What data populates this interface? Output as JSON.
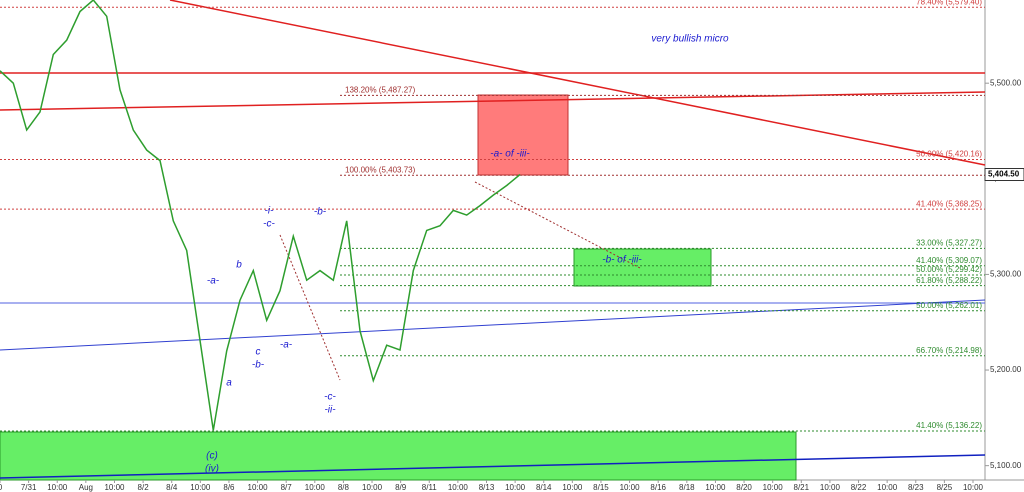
{
  "chart_data": {
    "type": "line",
    "title": "very bullish micro",
    "price": {
      "color": "#2e9e2e",
      "values": [
        5513,
        5500,
        5451,
        5470,
        5530,
        5545,
        5575,
        5587,
        5570,
        5493,
        5451,
        5430,
        5419,
        5356,
        5325,
        5231,
        5137,
        5220,
        5273,
        5304,
        5252,
        5283,
        5340,
        5294,
        5304,
        5294,
        5356,
        5241,
        5189,
        5226,
        5221,
        5304,
        5346,
        5351,
        5367,
        5362,
        5372,
        5383,
        5393,
        5404.5
      ]
    },
    "last_price": {
      "value": 5404.5,
      "label": "5,404.50"
    },
    "ylim": [
      5085,
      5587
    ],
    "yticks": [
      {
        "value": 5500,
        "label": "5,500.00"
      },
      {
        "value": 5400,
        "label": "5,400.00"
      },
      {
        "value": 5300,
        "label": "5,300.00"
      },
      {
        "value": 5200,
        "label": "5,200.00"
      },
      {
        "value": 5100,
        "label": "5,100.00"
      }
    ],
    "categories": [
      "0",
      "7/31",
      "10:00",
      "Aug",
      "10:00",
      "8/2",
      "8/4",
      "10:00",
      "8/6",
      "10:00",
      "8/7",
      "10:00",
      "8/8",
      "10:00",
      "8/9",
      "8/11",
      "10:00",
      "8/13",
      "10:00",
      "8/14",
      "10:00",
      "8/15",
      "10:00",
      "8/16",
      "8/18",
      "10:00",
      "8/20",
      "10:00",
      "8/21",
      "10:00",
      "8/22",
      "10:00",
      "8/23",
      "8/25",
      "10:00"
    ],
    "fib_levels": [
      {
        "label": "78.40% (5,579.40)",
        "value": 5579.4,
        "color": "#d04040"
      },
      {
        "label": "138.20% (5,487.27)",
        "value": 5487.27,
        "color": "#a03030"
      },
      {
        "label": "50.00% (5,420.16)",
        "value": 5420.16,
        "color": "#d04040"
      },
      {
        "label": "100.00% (5,403.73)",
        "value": 5403.73,
        "color": "#a03030"
      },
      {
        "label": "41.40% (5,368.25)",
        "value": 5368.25,
        "color": "#d04040"
      },
      {
        "label": "33.00% (5,327.27)",
        "value": 5327.27,
        "color": "#2e8b2e"
      },
      {
        "label": "41.40% (5,309.07)",
        "value": 5309.07,
        "color": "#2e8b2e"
      },
      {
        "label": "50.00% (5,299.42)",
        "value": 5299.42,
        "color": "#2e8b2e"
      },
      {
        "label": "61.80% (5,288.22)",
        "value": 5288.22,
        "color": "#2e8b2e"
      },
      {
        "label": "50.00% (5,262.01)",
        "value": 5262.01,
        "color": "#2e8b2e"
      },
      {
        "label": "66.70% (5,214.98)",
        "value": 5214.98,
        "color": "#2e8b2e"
      },
      {
        "label": "41.40% (5,136.22)",
        "value": 5136.22,
        "color": "#2e8b2e"
      }
    ],
    "annotations": [
      "-a- of -iii-",
      "-b- of -iii-",
      "-a-",
      "b",
      "-i-",
      "-c-",
      "-b-",
      "c",
      "-b-",
      "-a-",
      "a",
      "-c-",
      "-ii-",
      "(c)",
      "(iv)"
    ]
  }
}
